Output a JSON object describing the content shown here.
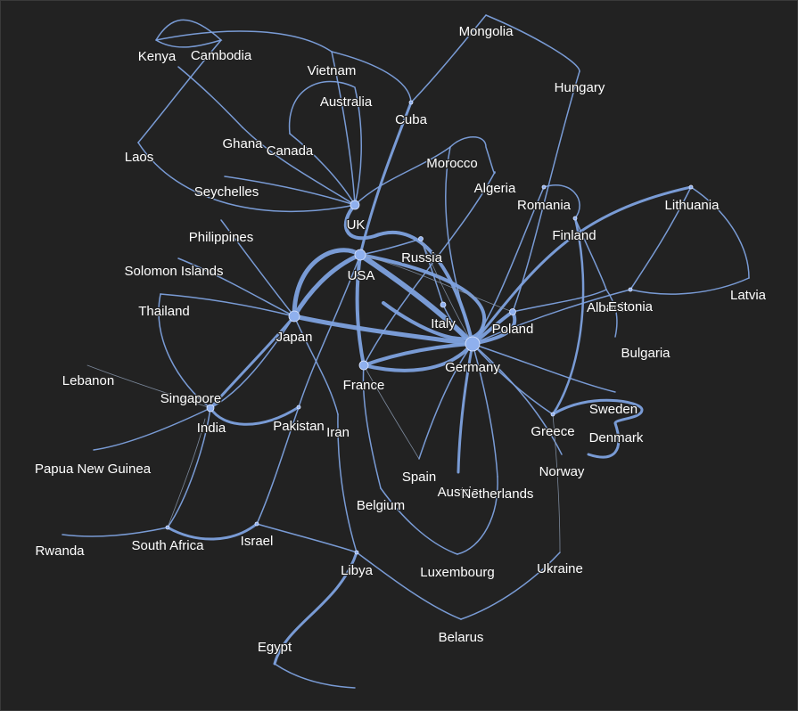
{
  "diagram": {
    "type": "network-graph",
    "edge_color": "#7ea2df",
    "node_color": "#8fb0ee",
    "background": "#222222",
    "nodes": [
      {
        "id": "mongolia",
        "label": "Mongolia"
      },
      {
        "id": "kenya",
        "label": "Kenya"
      },
      {
        "id": "cambodia",
        "label": "Cambodia"
      },
      {
        "id": "vietnam",
        "label": "Vietnam"
      },
      {
        "id": "hungary",
        "label": "Hungary"
      },
      {
        "id": "australia",
        "label": "Australia"
      },
      {
        "id": "cuba",
        "label": "Cuba"
      },
      {
        "id": "ghana",
        "label": "Ghana"
      },
      {
        "id": "canada",
        "label": "Canada"
      },
      {
        "id": "laos",
        "label": "Laos"
      },
      {
        "id": "morocco",
        "label": "Morocco"
      },
      {
        "id": "algeria",
        "label": "Algeria"
      },
      {
        "id": "seychelles",
        "label": "Seychelles"
      },
      {
        "id": "romania",
        "label": "Romania"
      },
      {
        "id": "lithuania",
        "label": "Lithuania"
      },
      {
        "id": "uk",
        "label": "UK"
      },
      {
        "id": "finland",
        "label": "Finland"
      },
      {
        "id": "philippines",
        "label": "Philippines"
      },
      {
        "id": "russia",
        "label": "Russia"
      },
      {
        "id": "solomon_islands",
        "label": "Solomon Islands"
      },
      {
        "id": "usa",
        "label": "USA"
      },
      {
        "id": "latvia",
        "label": "Latvia"
      },
      {
        "id": "thailand",
        "label": "Thailand"
      },
      {
        "id": "albania",
        "label": "Albania"
      },
      {
        "id": "estonia",
        "label": "Estonia"
      },
      {
        "id": "italy",
        "label": "Italy"
      },
      {
        "id": "poland",
        "label": "Poland"
      },
      {
        "id": "japan",
        "label": "Japan"
      },
      {
        "id": "bulgaria",
        "label": "Bulgaria"
      },
      {
        "id": "germany",
        "label": "Germany"
      },
      {
        "id": "lebanon",
        "label": "Lebanon"
      },
      {
        "id": "france",
        "label": "France"
      },
      {
        "id": "singapore",
        "label": "Singapore"
      },
      {
        "id": "sweden",
        "label": "Sweden"
      },
      {
        "id": "india",
        "label": "India"
      },
      {
        "id": "pakistan",
        "label": "Pakistan"
      },
      {
        "id": "iran",
        "label": "Iran"
      },
      {
        "id": "greece",
        "label": "Greece"
      },
      {
        "id": "denmark",
        "label": "Denmark"
      },
      {
        "id": "papua_new_guinea",
        "label": "Papua New Guinea"
      },
      {
        "id": "norway",
        "label": "Norway"
      },
      {
        "id": "spain",
        "label": "Spain"
      },
      {
        "id": "austria",
        "label": "Austria"
      },
      {
        "id": "netherlands",
        "label": "Netherlands"
      },
      {
        "id": "belgium",
        "label": "Belgium"
      },
      {
        "id": "rwanda",
        "label": "Rwanda"
      },
      {
        "id": "south_africa",
        "label": "South Africa"
      },
      {
        "id": "israel",
        "label": "Israel"
      },
      {
        "id": "libya",
        "label": "Libya"
      },
      {
        "id": "luxembourg",
        "label": "Luxembourg"
      },
      {
        "id": "ukraine",
        "label": "Ukraine"
      },
      {
        "id": "belarus",
        "label": "Belarus"
      },
      {
        "id": "egypt",
        "label": "Egypt"
      }
    ]
  }
}
